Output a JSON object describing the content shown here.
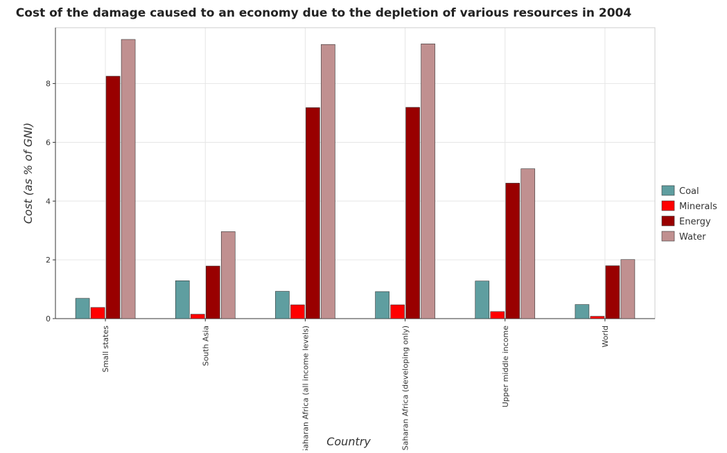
{
  "chart_data": {
    "type": "bar",
    "title": "Cost of the damage caused to an economy due to the depletion of various resources in 2004",
    "xlabel": "Country",
    "ylabel": "Cost (as % of GNI)",
    "categories": [
      "Small states",
      "South Asia",
      "Sub-Saharan Africa (all income levels)",
      "Sub-Saharan Africa (developing only)",
      "Upper middle income",
      "World"
    ],
    "series": [
      {
        "name": "Coal",
        "color": "#5f9ea0",
        "values": [
          0.69,
          1.29,
          0.93,
          0.92,
          1.28,
          0.48
        ]
      },
      {
        "name": "Minerals",
        "color": "#ff0000",
        "values": [
          0.38,
          0.15,
          0.47,
          0.47,
          0.24,
          0.08
        ]
      },
      {
        "name": "Energy",
        "color": "#990000",
        "values": [
          8.25,
          1.79,
          7.18,
          7.19,
          4.61,
          1.8
        ]
      },
      {
        "name": "Water",
        "color": "#c09090",
        "values": [
          9.5,
          2.96,
          9.33,
          9.35,
          5.1,
          2.01
        ]
      }
    ],
    "yticks": [
      0,
      2,
      4,
      6,
      8
    ],
    "ylim": [
      0,
      9.9
    ],
    "grid": true,
    "legend_position": "right"
  }
}
